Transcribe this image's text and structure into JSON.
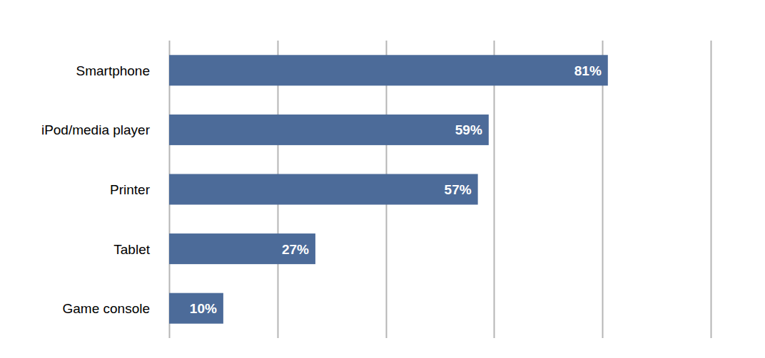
{
  "chart_data": {
    "type": "bar",
    "orientation": "horizontal",
    "categories": [
      "Smartphone",
      "iPod/media player",
      "Printer",
      "Tablet",
      "Game console"
    ],
    "values": [
      81,
      59,
      57,
      27,
      10
    ],
    "value_labels": [
      "81%",
      "59%",
      "57%",
      "27%",
      "10%"
    ],
    "color": "#4c6b99",
    "xlim": [
      0,
      100
    ],
    "xticks": [
      0,
      20,
      40,
      60,
      80,
      100
    ],
    "grid": true,
    "data_labels": true,
    "tick_labels": false
  }
}
